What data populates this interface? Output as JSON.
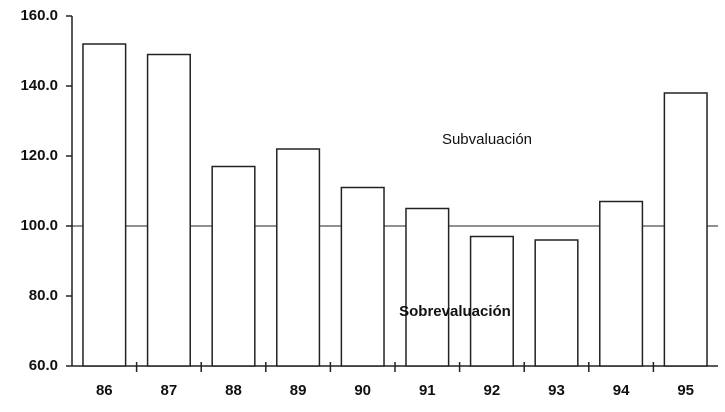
{
  "chart_data": {
    "type": "bar",
    "categories": [
      "86",
      "87",
      "88",
      "89",
      "90",
      "91",
      "92",
      "93",
      "94",
      "95"
    ],
    "values": [
      152,
      149,
      117,
      122,
      111,
      105,
      97,
      96,
      107,
      138
    ],
    "color": "#ffffff",
    "ylim": [
      60,
      160
    ],
    "yticks": [
      {
        "value": 60,
        "label": "60.0"
      },
      {
        "value": 80,
        "label": "80.0"
      },
      {
        "value": 100,
        "label": "100.0"
      },
      {
        "value": 120,
        "label": "120.0"
      },
      {
        "value": 140,
        "label": "140.0"
      },
      {
        "value": 160,
        "label": "160.0"
      }
    ],
    "reference_line": 100,
    "annotations": [
      "Subvaluación",
      "Sobrevaluación"
    ],
    "grid": false
  }
}
